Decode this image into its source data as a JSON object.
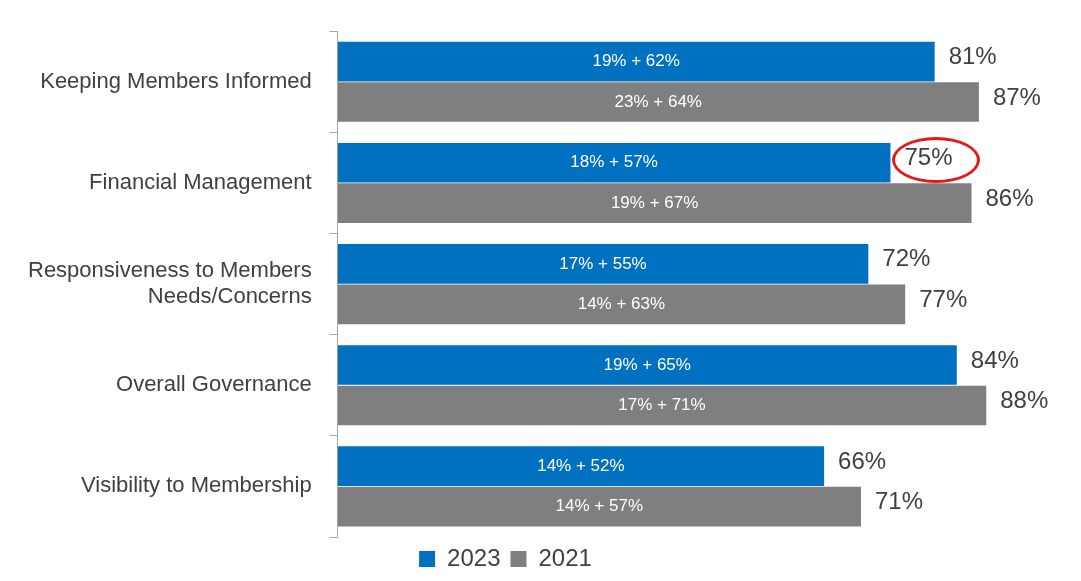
{
  "chart_data": {
    "type": "bar",
    "orientation": "horizontal",
    "categories": [
      "Keeping Members Informed",
      "Financial Management",
      [
        "Responsiveness to Members",
        "Needs/Concerns"
      ],
      "Overall Governance",
      "Visibility to Membership"
    ],
    "series": [
      {
        "name": "2023",
        "color": "#0070c0",
        "values": [
          81,
          75,
          72,
          84,
          66
        ],
        "value_labels": [
          "81%",
          "75%",
          "72%",
          "84%",
          "66%"
        ]
      },
      {
        "name": "2021",
        "color": "#7f7f7f",
        "values": [
          87,
          86,
          77,
          88,
          71
        ],
        "value_labels": [
          "87%",
          "86%",
          "77%",
          "88%",
          "71%"
        ]
      }
    ],
    "annotations": [
      "19% + 62%",
      "23% + 64%",
      "18% + 57%",
      "19% + 67%",
      "17% + 55%",
      "14% + 63%",
      "19% + 65%",
      "17% + 71%",
      "14% + 52%",
      "14% + 57%"
    ],
    "grid": false,
    "legend": "bottom"
  }
}
